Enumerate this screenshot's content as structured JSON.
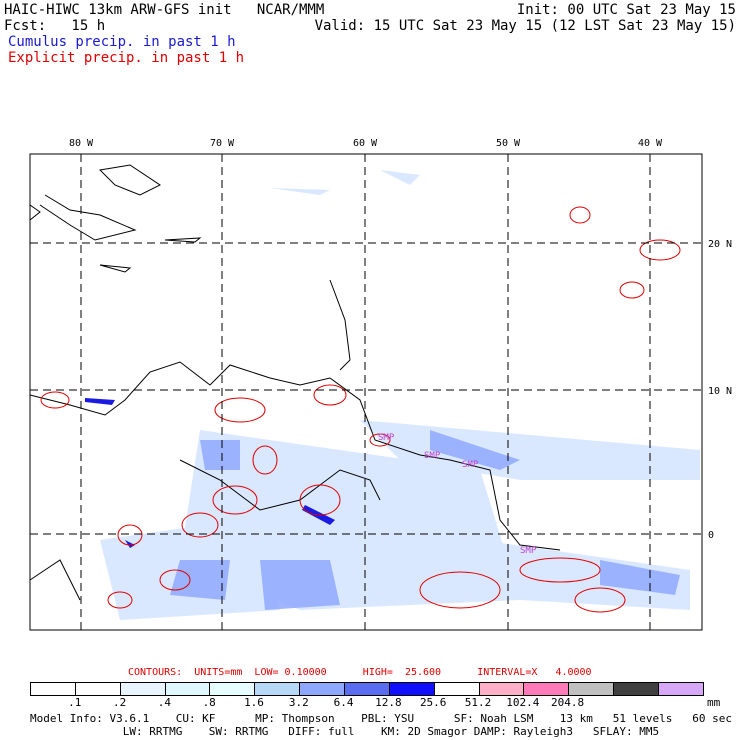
{
  "header": {
    "title_left": "HAIC-HIWC 13km ARW-GFS init   NCAR/MMM",
    "forecast": "Fcst:   15 h",
    "init": "Init: 00 UTC Sat 23 May 15",
    "valid": "Valid: 15 UTC Sat 23 May 15 (12 LST Sat 23 May 15)",
    "legend_cumulus": "Cumulus precip. in past 1 h",
    "legend_explicit": "Explicit precip. in past 1 h"
  },
  "map": {
    "lon_labels": [
      "80 W",
      "70 W",
      "60 W",
      "50 W",
      "40 W"
    ],
    "lat_labels": [
      "20 N",
      "10 N",
      "0"
    ],
    "gridline_color": "#000000",
    "coast_color": "#000000",
    "cumulus_color": "#5a6cf0",
    "explicit_color": "#e00000",
    "magenta_labels": [
      "SMP",
      "SMP",
      "SMP",
      "SMP"
    ]
  },
  "contours": {
    "text": "CONTOURS:  UNITS=mm  LOW= 0.10000      HIGH=  25.600      INTERVAL=X   4.0000"
  },
  "colorbar": {
    "colors": [
      "#ffffff",
      "#ffffff",
      "#e8f4ff",
      "#dff7ff",
      "#e8ffff",
      "#b8d8f8",
      "#8fa8ff",
      "#5a6cf0",
      "#1010ff",
      "#ffffff",
      "#ffb0c8",
      "#ff7ab8",
      "#c0c0c0",
      "#404040",
      "#d8a8f8"
    ],
    "labels": [
      ".1",
      ".2",
      ".4",
      ".8",
      "1.6",
      "3.2",
      "6.4",
      "12.8",
      "25.6",
      "51.2",
      "102.4",
      "204.8"
    ],
    "units": "mm"
  },
  "model_info": {
    "line1": "Model Info: V3.6.1    CU: KF      MP: Thompson    PBL: YSU      SF: Noah LSM    13 km   51 levels   60 sec",
    "line2": "              LW: RRTMG    SW: RRTMG   DIFF: full    KM: 2D Smagor DAMP: Rayleigh3   SFLAY: MM5"
  }
}
